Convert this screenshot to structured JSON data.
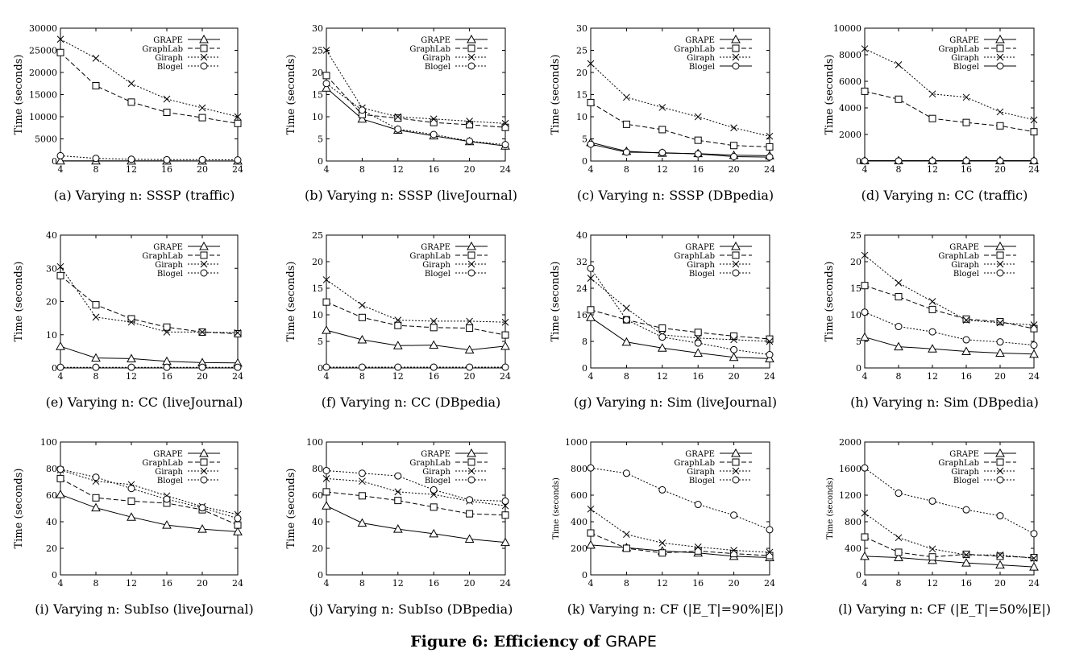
{
  "figure": {
    "caption_prefix": "Figure 6: Efficiency of ",
    "caption_system": "GRAPE"
  },
  "chart_data": [
    {
      "id": "a",
      "type": "line",
      "caption_letter": "(a)",
      "caption_text": "Varying n: SSSP (traffic)",
      "ylabel": "Time (seconds)",
      "x": [
        4,
        8,
        12,
        16,
        20,
        24
      ],
      "xticks": [
        4,
        8,
        12,
        16,
        20,
        24
      ],
      "ylim": [
        0,
        30000
      ],
      "yticks": [
        0,
        5000,
        10000,
        15000,
        20000,
        25000,
        30000
      ],
      "legend_position": "top-right",
      "series": [
        {
          "name": "GRAPE",
          "marker": "triangle",
          "dash": "solid",
          "values": [
            50,
            40,
            30,
            30,
            25,
            25
          ]
        },
        {
          "name": "GraphLab",
          "marker": "square",
          "dash": "dashed",
          "values": [
            24500,
            17000,
            13300,
            11000,
            9800,
            8500
          ]
        },
        {
          "name": "Giraph",
          "marker": "x",
          "dash": "dotted",
          "values": [
            27500,
            23200,
            17500,
            14000,
            12000,
            10000
          ]
        },
        {
          "name": "Blogel",
          "marker": "circle",
          "dash": "dotted",
          "values": [
            1200,
            600,
            400,
            300,
            300,
            250
          ]
        }
      ]
    },
    {
      "id": "b",
      "type": "line",
      "caption_letter": "(b)",
      "caption_text": "Varying n: SSSP (liveJournal)",
      "ylabel": "Time (seconds)",
      "x": [
        4,
        8,
        12,
        16,
        20,
        24
      ],
      "xticks": [
        4,
        8,
        12,
        16,
        20,
        24
      ],
      "ylim": [
        0,
        30
      ],
      "yticks": [
        0,
        5,
        10,
        15,
        20,
        25,
        30
      ],
      "legend_position": "top-right",
      "series": [
        {
          "name": "GRAPE",
          "marker": "triangle",
          "dash": "solid",
          "values": [
            16.5,
            9.5,
            7,
            5.7,
            4.4,
            3.4
          ]
        },
        {
          "name": "GraphLab",
          "marker": "square",
          "dash": "dashed",
          "values": [
            19.3,
            10.5,
            9.7,
            8.7,
            8.2,
            7.6
          ]
        },
        {
          "name": "Giraph",
          "marker": "x",
          "dash": "dotted",
          "values": [
            25,
            12,
            10,
            9.5,
            9,
            8.5
          ]
        },
        {
          "name": "Blogel",
          "marker": "circle",
          "dash": "dotted",
          "values": [
            17.5,
            11.5,
            7.2,
            6,
            4.5,
            3.7
          ]
        }
      ]
    },
    {
      "id": "c",
      "type": "line",
      "caption_letter": "(c)",
      "caption_text": "Varying n: SSSP (DBpedia)",
      "ylabel": "Time (seconds)",
      "x": [
        4,
        8,
        12,
        16,
        20,
        24
      ],
      "xticks": [
        4,
        8,
        12,
        16,
        20,
        24
      ],
      "ylim": [
        0,
        30
      ],
      "yticks": [
        0,
        5,
        10,
        15,
        20,
        25,
        30
      ],
      "legend_position": "top-right",
      "series": [
        {
          "name": "GRAPE",
          "marker": "triangle",
          "dash": "solid",
          "values": [
            4.2,
            2.2,
            1.8,
            1.7,
            1.3,
            1.2
          ]
        },
        {
          "name": "GraphLab",
          "marker": "square",
          "dash": "dashed",
          "values": [
            13.2,
            8.3,
            7.1,
            4.7,
            3.5,
            3.2
          ]
        },
        {
          "name": "Giraph",
          "marker": "x",
          "dash": "dotted",
          "values": [
            22,
            14.4,
            12.1,
            10,
            7.5,
            5.6
          ]
        },
        {
          "name": "Blogel",
          "marker": "circle",
          "dash": "solid",
          "values": [
            3.8,
            2,
            1.9,
            1.6,
            1,
            0.9
          ]
        }
      ]
    },
    {
      "id": "d",
      "type": "line",
      "caption_letter": "(d)",
      "caption_text": "Varying n: CC (traffic)",
      "ylabel": "Time (seconds)",
      "x": [
        4,
        8,
        12,
        16,
        20,
        24
      ],
      "xticks": [
        4,
        8,
        12,
        16,
        20,
        24
      ],
      "ylim": [
        0,
        10000
      ],
      "yticks": [
        0,
        2000,
        4000,
        6000,
        8000,
        10000
      ],
      "legend_position": "top-right",
      "series": [
        {
          "name": "GRAPE",
          "marker": "triangle",
          "dash": "solid",
          "values": [
            30,
            30,
            30,
            30,
            30,
            30
          ]
        },
        {
          "name": "GraphLab",
          "marker": "square",
          "dash": "dashed",
          "values": [
            5250,
            4650,
            3200,
            2900,
            2650,
            2200
          ]
        },
        {
          "name": "Giraph",
          "marker": "x",
          "dash": "dotted",
          "values": [
            8450,
            7250,
            5050,
            4800,
            3700,
            3100
          ]
        },
        {
          "name": "Blogel",
          "marker": "circle",
          "dash": "solid",
          "values": [
            10,
            10,
            10,
            10,
            10,
            10
          ]
        }
      ]
    },
    {
      "id": "e",
      "type": "line",
      "caption_letter": "(e)",
      "caption_text": "Varying n: CC (liveJournal)",
      "ylabel": "Time (seconds)",
      "x": [
        4,
        8,
        12,
        16,
        20,
        24
      ],
      "xticks": [
        4,
        8,
        12,
        16,
        20,
        24
      ],
      "ylim": [
        0,
        40
      ],
      "yticks": [
        0,
        10,
        20,
        30,
        40
      ],
      "legend_position": "top-right",
      "series": [
        {
          "name": "GRAPE",
          "marker": "triangle",
          "dash": "solid",
          "values": [
            6.5,
            3,
            2.8,
            2,
            1.6,
            1.5
          ]
        },
        {
          "name": "GraphLab",
          "marker": "square",
          "dash": "dashed",
          "values": [
            27.8,
            19,
            14.8,
            12.3,
            10.8,
            10.3
          ]
        },
        {
          "name": "Giraph",
          "marker": "x",
          "dash": "dotted",
          "values": [
            30.5,
            15.3,
            13.8,
            10.8,
            10.8,
            10.6
          ]
        },
        {
          "name": "Blogel",
          "marker": "circle",
          "dash": "dotted",
          "values": [
            0.2,
            0.2,
            0.2,
            0.2,
            0.2,
            0.2
          ]
        }
      ]
    },
    {
      "id": "f",
      "type": "line",
      "caption_letter": "(f)",
      "caption_text": "Varying n: CC (DBpedia)",
      "ylabel": "Time (seconds)",
      "x": [
        4,
        8,
        12,
        16,
        20,
        24
      ],
      "xticks": [
        4,
        8,
        12,
        16,
        20,
        24
      ],
      "ylim": [
        0,
        25
      ],
      "yticks": [
        0,
        5,
        10,
        15,
        20,
        25
      ],
      "legend_position": "top-right",
      "series": [
        {
          "name": "GRAPE",
          "marker": "triangle",
          "dash": "solid",
          "values": [
            7.1,
            5.3,
            4.2,
            4.3,
            3.4,
            4.1
          ]
        },
        {
          "name": "GraphLab",
          "marker": "square",
          "dash": "dashed",
          "values": [
            12.4,
            9.5,
            8,
            7.6,
            7.5,
            6.2
          ]
        },
        {
          "name": "Giraph",
          "marker": "x",
          "dash": "dotted",
          "values": [
            16.6,
            11.8,
            9,
            8.8,
            8.8,
            8.6
          ]
        },
        {
          "name": "Blogel",
          "marker": "circle",
          "dash": "dotted",
          "values": [
            0.15,
            0.15,
            0.15,
            0.15,
            0.15,
            0.15
          ]
        }
      ]
    },
    {
      "id": "g",
      "type": "line",
      "caption_letter": "(g)",
      "caption_text": "Varying n: Sim (liveJournal)",
      "ylabel": "Time (seconds)",
      "x": [
        4,
        8,
        12,
        16,
        20,
        24
      ],
      "xticks": [
        4,
        8,
        12,
        16,
        20,
        24
      ],
      "ylim": [
        0,
        40
      ],
      "yticks": [
        0,
        8,
        16,
        24,
        32,
        40
      ],
      "legend_position": "top-right",
      "series": [
        {
          "name": "GRAPE",
          "marker": "triangle",
          "dash": "solid",
          "values": [
            15.2,
            7.8,
            6,
            4.5,
            3.2,
            2.8
          ]
        },
        {
          "name": "GraphLab",
          "marker": "square",
          "dash": "dashed",
          "values": [
            17.5,
            14.5,
            12,
            10.7,
            9.6,
            8.7
          ]
        },
        {
          "name": "Giraph",
          "marker": "x",
          "dash": "dotted",
          "values": [
            27,
            18,
            10,
            9,
            8.5,
            8
          ]
        },
        {
          "name": "Blogel",
          "marker": "circle",
          "dash": "dotted",
          "values": [
            30,
            14.5,
            9.3,
            7.5,
            5.5,
            4
          ]
        }
      ]
    },
    {
      "id": "h",
      "type": "line",
      "caption_letter": "(h)",
      "caption_text": "Varying n: Sim (DBpedia)",
      "ylabel": "Time (seconds)",
      "x": [
        4,
        8,
        12,
        16,
        20,
        24
      ],
      "xticks": [
        4,
        8,
        12,
        16,
        20,
        24
      ],
      "ylim": [
        0,
        25
      ],
      "yticks": [
        0,
        5,
        10,
        15,
        20,
        25
      ],
      "legend_position": "top-right",
      "series": [
        {
          "name": "GRAPE",
          "marker": "triangle",
          "dash": "solid",
          "values": [
            5.8,
            4,
            3.6,
            3.1,
            2.8,
            2.6
          ]
        },
        {
          "name": "GraphLab",
          "marker": "square",
          "dash": "dashed",
          "values": [
            15.5,
            13.4,
            11,
            9.2,
            8.7,
            7.4
          ]
        },
        {
          "name": "Giraph",
          "marker": "x",
          "dash": "dotted",
          "values": [
            21.2,
            16,
            12.5,
            9,
            8.5,
            8.1
          ]
        },
        {
          "name": "Blogel",
          "marker": "circle",
          "dash": "dotted",
          "values": [
            10.5,
            7.8,
            6.8,
            5.3,
            4.9,
            4.3
          ]
        }
      ]
    },
    {
      "id": "i",
      "type": "line",
      "caption_letter": "(i)",
      "caption_text": "Varying n: SubIso (liveJournal)",
      "ylabel": "Time (seconds)",
      "x": [
        4,
        8,
        12,
        16,
        20,
        24
      ],
      "xticks": [
        4,
        8,
        12,
        16,
        20,
        24
      ],
      "ylim": [
        0,
        100
      ],
      "yticks": [
        0,
        20,
        40,
        60,
        80,
        100
      ],
      "legend_position": "top-right",
      "series": [
        {
          "name": "GRAPE",
          "marker": "triangle",
          "dash": "solid",
          "values": [
            60.5,
            50.5,
            43.5,
            37.5,
            34.5,
            32.5
          ]
        },
        {
          "name": "GraphLab",
          "marker": "square",
          "dash": "dashed",
          "values": [
            72.5,
            58,
            55.5,
            54,
            49,
            37.5
          ]
        },
        {
          "name": "Giraph",
          "marker": "x",
          "dash": "dotted",
          "values": [
            79,
            70.5,
            68,
            59.5,
            51.5,
            45.5
          ]
        },
        {
          "name": "Blogel",
          "marker": "circle",
          "dash": "dotted",
          "values": [
            79.5,
            73.5,
            65,
            57,
            50.5,
            42.5
          ]
        }
      ]
    },
    {
      "id": "j",
      "type": "line",
      "caption_letter": "(j)",
      "caption_text": "Varying n: SubIso (DBpedia)",
      "ylabel": "Time (seconds)",
      "x": [
        4,
        8,
        12,
        16,
        20,
        24
      ],
      "xticks": [
        4,
        8,
        12,
        16,
        20,
        24
      ],
      "ylim": [
        0,
        100
      ],
      "yticks": [
        0,
        20,
        40,
        60,
        80,
        100
      ],
      "legend_position": "top-right",
      "series": [
        {
          "name": "GRAPE",
          "marker": "triangle",
          "dash": "solid",
          "values": [
            52,
            39,
            34.5,
            31,
            27,
            24.5
          ]
        },
        {
          "name": "GraphLab",
          "marker": "square",
          "dash": "dashed",
          "values": [
            62.5,
            59.5,
            56,
            51,
            46,
            45
          ]
        },
        {
          "name": "Giraph",
          "marker": "x",
          "dash": "dotted",
          "values": [
            72.5,
            70.5,
            62.5,
            60.5,
            55.5,
            52
          ]
        },
        {
          "name": "Blogel",
          "marker": "circle",
          "dash": "dotted",
          "values": [
            78.5,
            76.5,
            74.5,
            64,
            56.5,
            55.5
          ]
        }
      ]
    },
    {
      "id": "k",
      "type": "line",
      "caption_letter": "(k)",
      "caption_text": "Varying n: CF (|E_T|=90%|E|)",
      "ylabel": "Time (seconds)",
      "x": [
        4,
        8,
        12,
        16,
        20,
        24
      ],
      "xticks": [
        4,
        8,
        12,
        16,
        20,
        24
      ],
      "ylim": [
        0,
        1000
      ],
      "yticks": [
        0,
        200,
        400,
        600,
        800,
        1000
      ],
      "legend_position": "top-right",
      "series": [
        {
          "name": "GRAPE",
          "marker": "triangle",
          "dash": "solid",
          "values": [
            225,
            205,
            180,
            165,
            140,
            130
          ]
        },
        {
          "name": "GraphLab",
          "marker": "square",
          "dash": "dashed",
          "values": [
            315,
            200,
            165,
            180,
            160,
            145
          ]
        },
        {
          "name": "Giraph",
          "marker": "x",
          "dash": "dotted",
          "values": [
            495,
            305,
            240,
            210,
            185,
            170
          ]
        },
        {
          "name": "Blogel",
          "marker": "circle",
          "dash": "dotted",
          "values": [
            805,
            765,
            640,
            530,
            450,
            340
          ]
        }
      ]
    },
    {
      "id": "l",
      "type": "line",
      "caption_letter": "(l)",
      "caption_text": "Varying n: CF (|E_T|=50%|E|)",
      "ylabel": "Time (seconds)",
      "x": [
        4,
        8,
        12,
        16,
        20,
        24
      ],
      "xticks": [
        4,
        8,
        12,
        16,
        20,
        24
      ],
      "ylim": [
        0,
        2000
      ],
      "yticks": [
        0,
        400,
        800,
        1200,
        1600,
        2000
      ],
      "legend_position": "top-right",
      "series": [
        {
          "name": "GRAPE",
          "marker": "triangle",
          "dash": "solid",
          "values": [
            280,
            260,
            220,
            180,
            150,
            120
          ]
        },
        {
          "name": "GraphLab",
          "marker": "square",
          "dash": "dashed",
          "values": [
            570,
            340,
            270,
            310,
            280,
            260
          ]
        },
        {
          "name": "Giraph",
          "marker": "x",
          "dash": "dotted",
          "values": [
            930,
            560,
            390,
            300,
            300,
            250
          ]
        },
        {
          "name": "Blogel",
          "marker": "circle",
          "dash": "dotted",
          "values": [
            1610,
            1230,
            1110,
            980,
            890,
            620
          ]
        }
      ]
    }
  ]
}
